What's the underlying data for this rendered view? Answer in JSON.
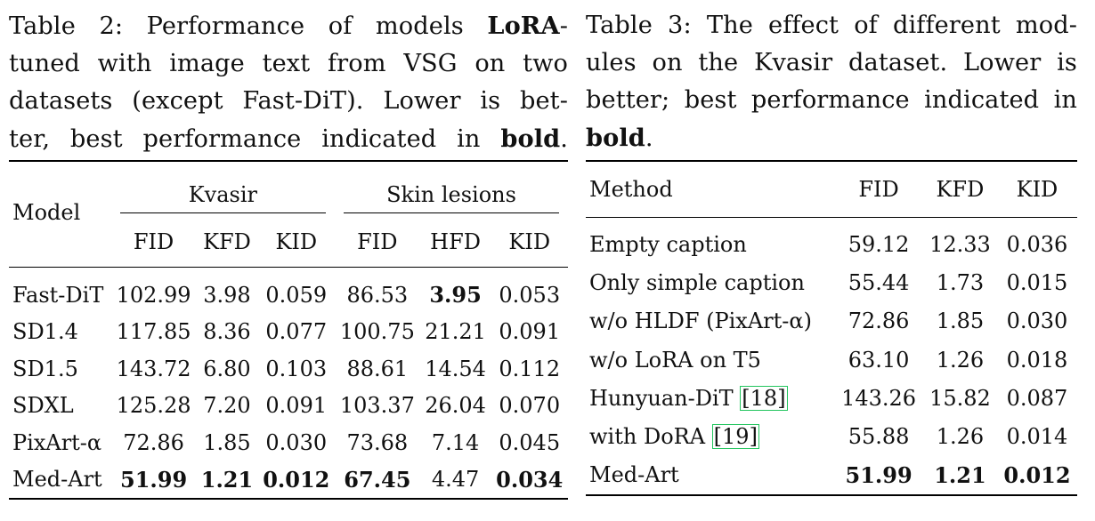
{
  "table2": {
    "caption": {
      "l1a": "Table 2: Performance of models ",
      "l1b": "LoRA",
      "l1c": "-",
      "l2": "tuned with image text from VSG on two",
      "l3": "datasets (except Fast-DiT). Lower is bet-",
      "l4a": "ter, best performance indicated in ",
      "l4b": "bold",
      "l4c": "."
    },
    "header": {
      "model": "Model",
      "group1": "Kvasir",
      "group2": "Skin lesions",
      "cols": [
        "FID",
        "KFD",
        "KID",
        "FID",
        "HFD",
        "KID"
      ]
    },
    "rows": [
      {
        "model": "Fast-DiT",
        "v": [
          "102.99",
          "3.98",
          "0.059",
          "86.53",
          "3.95",
          "0.053"
        ]
      },
      {
        "model": "SD1.4",
        "v": [
          "117.85",
          "8.36",
          "0.077",
          "100.75",
          "21.21",
          "0.091"
        ]
      },
      {
        "model": "SD1.5",
        "v": [
          "143.72",
          "6.80",
          "0.103",
          "88.61",
          "14.54",
          "0.112"
        ]
      },
      {
        "model": "SDXL",
        "v": [
          "125.28",
          "7.20",
          "0.091",
          "103.37",
          "26.04",
          "0.070"
        ]
      },
      {
        "model": "PixArt-α",
        "v": [
          "72.86",
          "1.85",
          "0.030",
          "73.68",
          "7.14",
          "0.045"
        ]
      },
      {
        "model": "Med-Art",
        "v": [
          "51.99",
          "1.21",
          "0.012",
          "67.45",
          "4.47",
          "0.034"
        ]
      }
    ]
  },
  "table3": {
    "caption": {
      "l1": "Table 3: The effect of different mod-",
      "l2": "ules on the Kvasir dataset. Lower is",
      "l3": "better; best performance indicated in",
      "l4a": "bold",
      "l4b": "."
    },
    "header": {
      "method": "Method",
      "cols": [
        "FID",
        "KFD",
        "KID"
      ]
    },
    "rows": [
      {
        "method": "Empty caption",
        "v": [
          "59.12",
          "12.33",
          "0.036"
        ]
      },
      {
        "method": "Only simple caption",
        "v": [
          "55.44",
          "1.73",
          "0.015"
        ]
      },
      {
        "method": "w/o HLDF (PixArt-α)",
        "v": [
          "72.86",
          "1.85",
          "0.030"
        ]
      },
      {
        "method": "w/o LoRA on T5",
        "v": [
          "63.10",
          "1.26",
          "0.018"
        ]
      },
      {
        "method": "Hunyuan-DiT ",
        "cite": "[18]",
        "v": [
          "143.26",
          "15.82",
          "0.087"
        ]
      },
      {
        "method": "with DoRA ",
        "cite": "[19]",
        "v": [
          "55.88",
          "1.26",
          "0.014"
        ]
      },
      {
        "method": "Med-Art",
        "v": [
          "51.99",
          "1.21",
          "0.012"
        ]
      }
    ]
  }
}
